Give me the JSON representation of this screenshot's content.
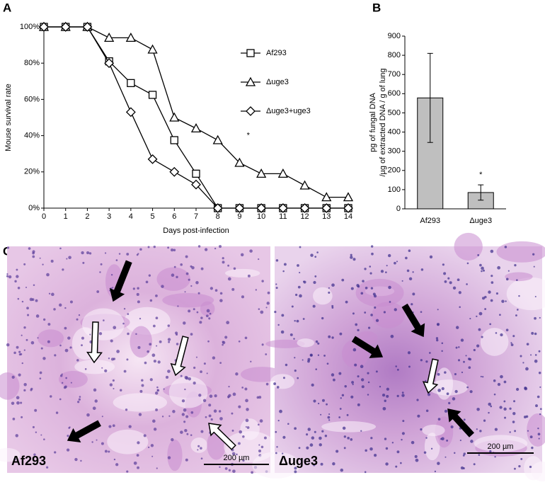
{
  "chart_data": [
    {
      "type": "line",
      "panel": "A",
      "xlabel": "Days post-infection",
      "ylabel": "Mouse survival rate",
      "x": [
        0,
        1,
        2,
        3,
        4,
        5,
        6,
        7,
        8,
        9,
        10,
        11,
        12,
        13,
        14
      ],
      "xlim": [
        0,
        14
      ],
      "xticks": [
        0,
        1,
        2,
        3,
        4,
        5,
        6,
        7,
        8,
        9,
        10,
        11,
        12,
        13,
        14
      ],
      "ylim": [
        0,
        100
      ],
      "yticks": [
        {
          "value": 0,
          "label": "0%"
        },
        {
          "value": 20,
          "label": "20%"
        },
        {
          "value": 40,
          "label": "40%"
        },
        {
          "value": 60,
          "label": "60%"
        },
        {
          "value": 80,
          "label": "80%"
        },
        {
          "value": 100,
          "label": "100%"
        }
      ],
      "series": [
        {
          "name": "Af293",
          "color": "#000000",
          "marker": "square",
          "values": [
            100,
            100,
            100,
            81,
            69,
            62.5,
            37.5,
            19,
            0,
            0,
            0,
            0,
            0,
            0,
            0
          ]
        },
        {
          "name": "Δuge3",
          "color": "#000000",
          "marker": "triangle",
          "values": [
            100,
            100,
            100,
            94,
            94,
            87.5,
            50,
            44,
            37.5,
            25,
            19,
            19,
            12.5,
            6,
            6
          ]
        },
        {
          "name": "Δuge3+uge3",
          "color": "#000000",
          "marker": "diamond",
          "values": [
            100,
            100,
            100,
            80,
            53,
            27,
            20,
            13,
            0,
            0,
            0,
            0,
            0,
            0,
            0
          ]
        }
      ],
      "annotations": [
        "*"
      ]
    },
    {
      "type": "bar",
      "panel": "B",
      "ylabel": [
        "pg of fungal DNA",
        "/µg of extracted DNA / g of lung"
      ],
      "categories": [
        "Af293",
        "Δuge3"
      ],
      "values": [
        578,
        85
      ],
      "errors": [
        232,
        40
      ],
      "color": "#bfbfbf",
      "ylim": [
        0,
        900
      ],
      "yticks": [
        0,
        100,
        200,
        300,
        400,
        500,
        600,
        700,
        800,
        900
      ],
      "annotations": [
        "*"
      ]
    }
  ],
  "micrographs": {
    "panel": "C",
    "images": [
      {
        "label": "Af293",
        "scale": "200 µm"
      },
      {
        "label": "Δuge3",
        "scale": "200 µm"
      }
    ]
  }
}
